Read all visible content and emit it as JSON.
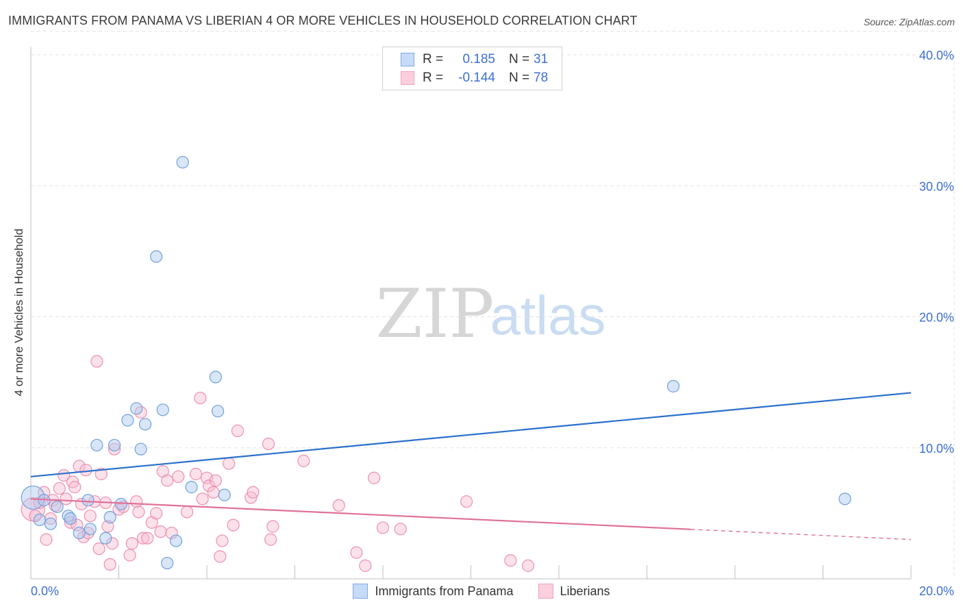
{
  "title": "IMMIGRANTS FROM PANAMA VS LIBERIAN 4 OR MORE VEHICLES IN HOUSEHOLD CORRELATION CHART",
  "source": "Source: ZipAtlas.com",
  "watermark": {
    "zip": "ZIP",
    "atlas": "atlas"
  },
  "legend": {
    "r_label": "R =",
    "n_label": "N =",
    "panama": {
      "r": "0.185",
      "n": "31"
    },
    "liberian": {
      "r": "-0.144",
      "n": "78"
    }
  },
  "bottom_legend": {
    "panama": "Immigrants from Panama",
    "liberian": "Liberians"
  },
  "colors": {
    "panama_fill": "#aac8f0",
    "panama_stroke": "#6fa0dc",
    "panama_line": "#2a6fcc",
    "liberian_fill": "#f7bcd0",
    "liberian_stroke": "#ee8fb0",
    "liberian_line": "#e0709a",
    "tick_text": "#3b6fd0",
    "grid": "#e3e3e3"
  },
  "chart_data": {
    "type": "scatter",
    "title": "IMMIGRANTS FROM PANAMA VS LIBERIAN 4 OR MORE VEHICLES IN HOUSEHOLD CORRELATION CHART",
    "xlabel": "",
    "ylabel": "4 or more Vehicles in Household",
    "xlim": [
      0,
      20
    ],
    "ylim": [
      0,
      40
    ],
    "x_tick_labels": [
      "0.0%",
      "20.0%"
    ],
    "y_ticks": [
      {
        "value": 10,
        "label": "10.0%"
      },
      {
        "value": 20,
        "label": "20.0%"
      },
      {
        "value": 30,
        "label": "30.0%"
      },
      {
        "value": 40,
        "label": "40.0%"
      }
    ],
    "grid": true,
    "series": [
      {
        "name": "Immigrants from Panama",
        "key": "panama",
        "trend": {
          "x": [
            0,
            20
          ],
          "y": [
            7.8,
            14.2
          ],
          "dashed_from": null
        },
        "points": [
          [
            0.05,
            6.2,
            "large"
          ],
          [
            0.2,
            4.5
          ],
          [
            0.3,
            6.0
          ],
          [
            0.45,
            4.2
          ],
          [
            0.6,
            5.5
          ],
          [
            0.85,
            4.8
          ],
          [
            0.9,
            4.6
          ],
          [
            1.1,
            3.5
          ],
          [
            1.3,
            6.0
          ],
          [
            1.35,
            3.8
          ],
          [
            1.5,
            10.2
          ],
          [
            1.7,
            3.1
          ],
          [
            1.8,
            4.7
          ],
          [
            1.9,
            10.2
          ],
          [
            2.05,
            5.7
          ],
          [
            2.2,
            12.1
          ],
          [
            2.4,
            13.0
          ],
          [
            2.5,
            9.9
          ],
          [
            2.6,
            11.8
          ],
          [
            2.85,
            24.6
          ],
          [
            3.0,
            12.9
          ],
          [
            3.1,
            1.2
          ],
          [
            3.3,
            2.9
          ],
          [
            3.45,
            31.8
          ],
          [
            3.65,
            7.0
          ],
          [
            4.2,
            15.4
          ],
          [
            4.25,
            12.8
          ],
          [
            4.4,
            6.4
          ],
          [
            14.6,
            14.7
          ],
          [
            18.5,
            6.1
          ]
        ]
      },
      {
        "name": "Liberians",
        "key": "liberian",
        "trend": {
          "x": [
            0,
            20
          ],
          "y": [
            6.1,
            3.0
          ],
          "dashed_from": 15.0
        },
        "points": [
          [
            0.05,
            5.3,
            "large"
          ],
          [
            0.1,
            4.8
          ],
          [
            0.2,
            5.8
          ],
          [
            0.3,
            6.6
          ],
          [
            0.35,
            3.0
          ],
          [
            0.45,
            4.6
          ],
          [
            0.5,
            6.0
          ],
          [
            0.55,
            5.6
          ],
          [
            0.65,
            6.9
          ],
          [
            0.75,
            7.9
          ],
          [
            0.8,
            6.1
          ],
          [
            0.9,
            4.3
          ],
          [
            0.95,
            7.4
          ],
          [
            1.0,
            7.0
          ],
          [
            1.05,
            4.1
          ],
          [
            1.1,
            8.6
          ],
          [
            1.15,
            5.7
          ],
          [
            1.2,
            3.2
          ],
          [
            1.25,
            8.3
          ],
          [
            1.3,
            3.5
          ],
          [
            1.35,
            4.8
          ],
          [
            1.45,
            5.9
          ],
          [
            1.5,
            16.6
          ],
          [
            1.55,
            2.3
          ],
          [
            1.6,
            8.0
          ],
          [
            1.7,
            5.8
          ],
          [
            1.75,
            4.0
          ],
          [
            1.8,
            1.1
          ],
          [
            1.85,
            2.7
          ],
          [
            1.9,
            9.9
          ],
          [
            2.0,
            5.3
          ],
          [
            2.1,
            5.5
          ],
          [
            2.25,
            1.8
          ],
          [
            2.3,
            2.7
          ],
          [
            2.4,
            5.9
          ],
          [
            2.45,
            5.1
          ],
          [
            2.5,
            12.7
          ],
          [
            2.55,
            3.1
          ],
          [
            2.65,
            3.1
          ],
          [
            2.75,
            4.3
          ],
          [
            2.85,
            5.0
          ],
          [
            2.95,
            3.6
          ],
          [
            3.0,
            8.2
          ],
          [
            3.1,
            7.5
          ],
          [
            3.2,
            3.5
          ],
          [
            3.35,
            7.8
          ],
          [
            3.55,
            5.1
          ],
          [
            3.75,
            8.0
          ],
          [
            3.85,
            13.8
          ],
          [
            3.9,
            6.1
          ],
          [
            4.0,
            7.7
          ],
          [
            4.05,
            7.1
          ],
          [
            4.15,
            6.6
          ],
          [
            4.2,
            7.5
          ],
          [
            4.3,
            1.7
          ],
          [
            4.35,
            2.9
          ],
          [
            4.5,
            8.8
          ],
          [
            4.6,
            4.1
          ],
          [
            4.7,
            11.3
          ],
          [
            5.0,
            6.2
          ],
          [
            5.05,
            6.6
          ],
          [
            5.4,
            10.3
          ],
          [
            5.45,
            3.0
          ],
          [
            5.5,
            4.0
          ],
          [
            6.2,
            9.0
          ],
          [
            7.0,
            5.6
          ],
          [
            7.4,
            2.0
          ],
          [
            7.6,
            1.0
          ],
          [
            7.8,
            7.7
          ],
          [
            8.0,
            3.9
          ],
          [
            8.4,
            3.8
          ],
          [
            9.9,
            5.9
          ],
          [
            10.9,
            1.4
          ],
          [
            11.3,
            1.0
          ]
        ]
      }
    ]
  }
}
